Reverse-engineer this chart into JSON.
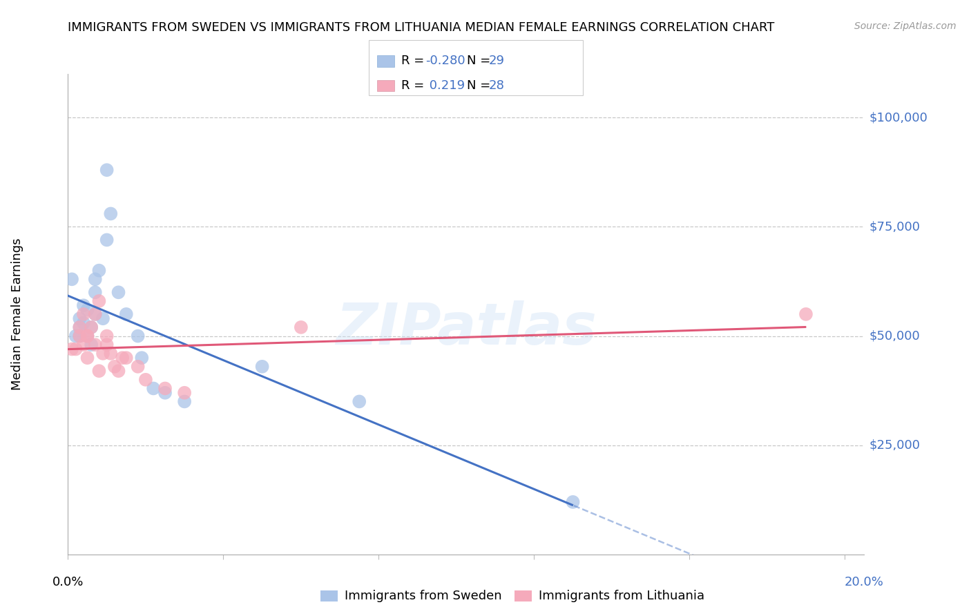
{
  "title": "IMMIGRANTS FROM SWEDEN VS IMMIGRANTS FROM LITHUANIA MEDIAN FEMALE EARNINGS CORRELATION CHART",
  "source": "Source: ZipAtlas.com",
  "ylabel": "Median Female Earnings",
  "xlim": [
    0.0,
    0.205
  ],
  "ylim": [
    0,
    110000
  ],
  "background_color": "#ffffff",
  "grid_color": "#c8c8c8",
  "watermark": "ZIPatlas",
  "legend_label_blue": "Immigrants from Sweden",
  "legend_label_pink": "Immigrants from Lithuania",
  "blue_scatter_color": "#aac4e8",
  "pink_scatter_color": "#f5aabb",
  "line_blue": "#4472c4",
  "line_pink": "#e05878",
  "axis_label_color": "#4472c4",
  "sweden_x": [
    0.001,
    0.002,
    0.003,
    0.003,
    0.003,
    0.004,
    0.004,
    0.005,
    0.005,
    0.006,
    0.006,
    0.007,
    0.007,
    0.007,
    0.008,
    0.009,
    0.01,
    0.01,
    0.011,
    0.013,
    0.015,
    0.018,
    0.019,
    0.022,
    0.025,
    0.03,
    0.05,
    0.075,
    0.13
  ],
  "sweden_y": [
    63000,
    50000,
    52000,
    54000,
    50000,
    53000,
    57000,
    50000,
    56000,
    52000,
    48000,
    60000,
    63000,
    55000,
    65000,
    54000,
    72000,
    88000,
    78000,
    60000,
    55000,
    50000,
    45000,
    38000,
    37000,
    35000,
    43000,
    35000,
    12000
  ],
  "lithuania_x": [
    0.001,
    0.002,
    0.003,
    0.003,
    0.004,
    0.004,
    0.005,
    0.005,
    0.005,
    0.006,
    0.007,
    0.007,
    0.008,
    0.008,
    0.009,
    0.01,
    0.01,
    0.011,
    0.012,
    0.013,
    0.014,
    0.015,
    0.018,
    0.02,
    0.025,
    0.03,
    0.06,
    0.19
  ],
  "lithuania_y": [
    47000,
    47000,
    50000,
    52000,
    48000,
    55000,
    50000,
    50000,
    45000,
    52000,
    55000,
    48000,
    58000,
    42000,
    46000,
    48000,
    50000,
    46000,
    43000,
    42000,
    45000,
    45000,
    43000,
    40000,
    38000,
    37000,
    52000,
    55000
  ],
  "marker_size": 200,
  "title_fontsize": 13,
  "axis_fontsize": 13,
  "tick_fontsize": 13,
  "legend_fontsize": 13
}
